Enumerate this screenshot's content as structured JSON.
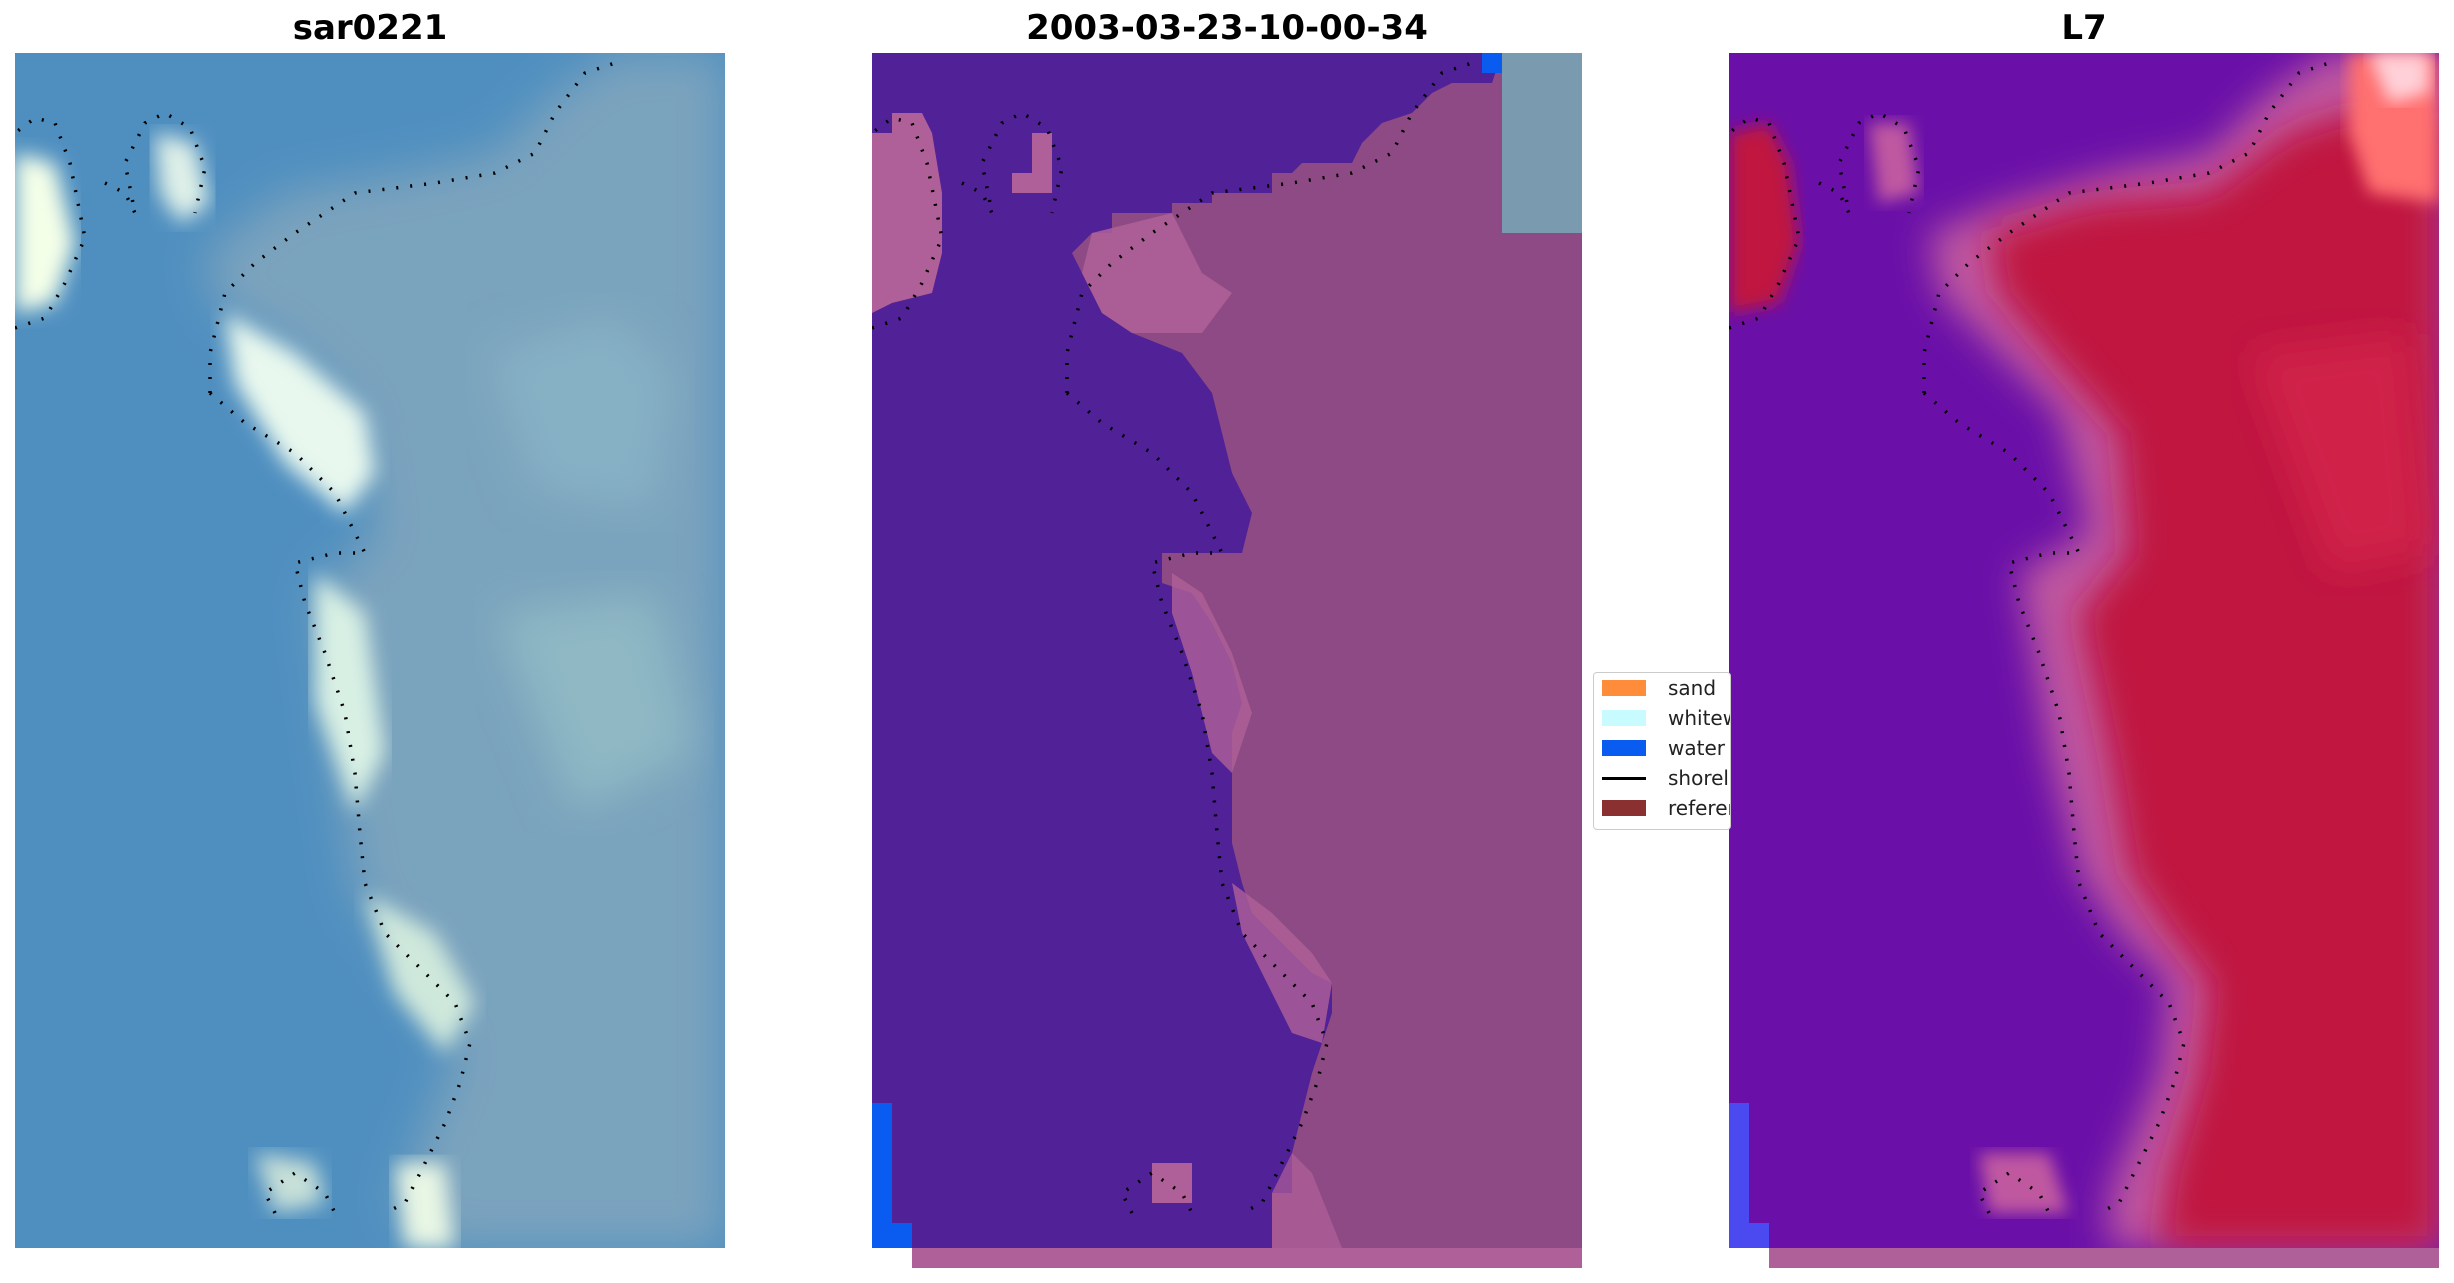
{
  "panels": [
    {
      "title": "sar0221",
      "kind": "rgb"
    },
    {
      "title": "2003-03-23-10-00-34",
      "kind": "classified"
    },
    {
      "title": "L7",
      "kind": "index"
    }
  ],
  "legend": {
    "items": [
      {
        "label": "sand",
        "color": "#ff8c3a",
        "type": "patch"
      },
      {
        "label": "whitewater",
        "color": "#c8fbff",
        "type": "patch"
      },
      {
        "label": "water",
        "color": "#0a5cf0",
        "type": "patch"
      },
      {
        "label": "shoreline",
        "color": "#000000",
        "type": "line"
      },
      {
        "label": "reference",
        "color": "#8b3030",
        "type": "patch"
      }
    ]
  },
  "colors": {
    "rgb_water": "#4f8fc0",
    "rgb_land": "#7aa8c2",
    "rgb_bright": "#e8f8ee",
    "class_water": "#512197",
    "class_land": "#8e4a84",
    "class_land_light": "#b06098",
    "class_blue": "#0a5cf0",
    "index_water": "#6a10a8",
    "index_land": "#c01840",
    "index_edge": "#c058a0"
  }
}
